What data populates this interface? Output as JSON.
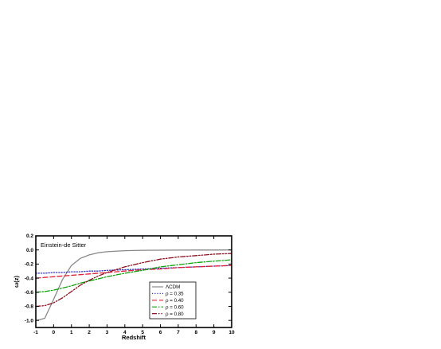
{
  "chart_data": {
    "type": "line",
    "xlabel": "Redshift",
    "ylabel": "ω(z)",
    "annotation": "Einstein-de Sitter",
    "xlim": [
      -1,
      10
    ],
    "ylim": [
      -1.1,
      0.2
    ],
    "xticks": [
      -1,
      0,
      1,
      2,
      3,
      4,
      5,
      6,
      7,
      8,
      9,
      10
    ],
    "xtick_labels": [
      "-1",
      "0",
      "1",
      "2",
      "3",
      "4",
      "5",
      "6",
      "7",
      "8",
      "9",
      "10"
    ],
    "yticks": [
      0.2,
      0.0,
      -0.2,
      -0.4,
      -0.6,
      -0.8,
      -1.0
    ],
    "ytick_labels": [
      "0.2",
      "0.0",
      "-0.2",
      "-0.4",
      "-0.6",
      "-0.8",
      "-1.0"
    ],
    "grid": false,
    "legend_position": "lower-right",
    "x": [
      -1,
      -0.5,
      0,
      0.5,
      1,
      1.5,
      2,
      2.5,
      3,
      4,
      5,
      6,
      7,
      8,
      9,
      10
    ],
    "series": [
      {
        "name": "ΛCDM",
        "color": "#888888",
        "dash": "solid",
        "values": [
          -1.0,
          -0.97,
          -0.7,
          -0.42,
          -0.22,
          -0.12,
          -0.07,
          -0.04,
          -0.025,
          -0.01,
          -0.005,
          -0.003,
          -0.002,
          -0.001,
          -0.001,
          0.0
        ]
      },
      {
        "name": "ρ = 0.35",
        "color": "#3030c0",
        "dash": "dotted",
        "values": [
          -0.33,
          -0.33,
          -0.32,
          -0.32,
          -0.31,
          -0.31,
          -0.3,
          -0.3,
          -0.29,
          -0.28,
          -0.27,
          -0.26,
          -0.25,
          -0.24,
          -0.23,
          -0.22
        ]
      },
      {
        "name": "ρ = 0.40",
        "color": "#e0203a",
        "dash": "dash",
        "values": [
          -0.4,
          -0.39,
          -0.38,
          -0.37,
          -0.36,
          -0.35,
          -0.34,
          -0.33,
          -0.32,
          -0.3,
          -0.28,
          -0.27,
          -0.25,
          -0.24,
          -0.23,
          -0.22
        ]
      },
      {
        "name": "ρ = 0.60",
        "color": "#10a010",
        "dash": "dashdot",
        "values": [
          -0.6,
          -0.59,
          -0.57,
          -0.54,
          -0.51,
          -0.47,
          -0.44,
          -0.41,
          -0.38,
          -0.33,
          -0.29,
          -0.24,
          -0.21,
          -0.18,
          -0.16,
          -0.14
        ]
      },
      {
        "name": "ρ = 0.80",
        "color": "#8b1020",
        "dash": "dashdotdot",
        "values": [
          -0.8,
          -0.79,
          -0.75,
          -0.68,
          -0.59,
          -0.5,
          -0.43,
          -0.37,
          -0.32,
          -0.24,
          -0.18,
          -0.13,
          -0.1,
          -0.08,
          -0.06,
          -0.05
        ]
      }
    ]
  }
}
